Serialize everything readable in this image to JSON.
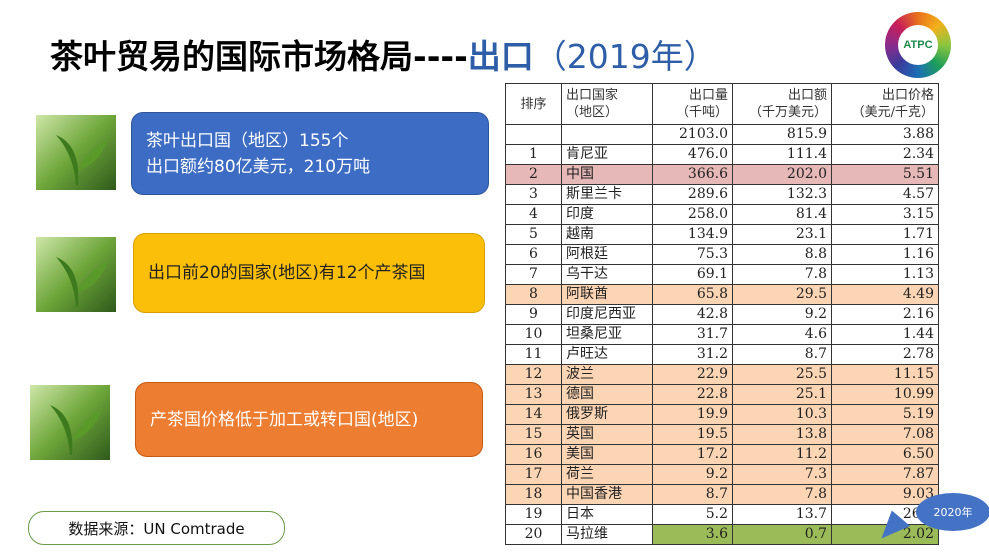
{
  "title": {
    "main": "茶叶贸易的国际市场格局----",
    "highlight": "出口",
    "year": "（2019年）"
  },
  "logo": {
    "text": "ATPC"
  },
  "boxes": [
    {
      "line1": "茶叶出口国（地区）155个",
      "line2": "出口额约80亿美元，210万吨",
      "color": "#3d6cc4"
    },
    {
      "line1": "出口前20的国家(地区)有12个产茶国",
      "color": "#fbbf09"
    },
    {
      "line1": "产茶国价格低于加工或转口国(地区)",
      "color": "#ed7d31"
    }
  ],
  "source": "数据来源：UN Comtrade",
  "callout": "2020年",
  "table": {
    "headers": [
      [
        "排序"
      ],
      [
        "出口国家",
        "（地区）"
      ],
      [
        "出口量",
        "（千吨）"
      ],
      [
        "出口额",
        "（千万美元）"
      ],
      [
        "出口价格",
        "（美元/千克）"
      ]
    ],
    "total": [
      "",
      "",
      "2103.0",
      "815.9",
      "3.88"
    ],
    "rows": [
      [
        "1",
        "肯尼亚",
        "476.0",
        "111.4",
        "2.34"
      ],
      [
        "2",
        "中国",
        "366.6",
        "202.0",
        "5.51"
      ],
      [
        "3",
        "斯里兰卡",
        "289.6",
        "132.3",
        "4.57"
      ],
      [
        "4",
        "印度",
        "258.0",
        "81.4",
        "3.15"
      ],
      [
        "5",
        "越南",
        "134.9",
        "23.1",
        "1.71"
      ],
      [
        "6",
        "阿根廷",
        "75.3",
        "8.8",
        "1.16"
      ],
      [
        "7",
        "乌干达",
        "69.1",
        "7.8",
        "1.13"
      ],
      [
        "8",
        "阿联酋",
        "65.8",
        "29.5",
        "4.49"
      ],
      [
        "9",
        "印度尼西亚",
        "42.8",
        "9.2",
        "2.16"
      ],
      [
        "10",
        "坦桑尼亚",
        "31.7",
        "4.6",
        "1.44"
      ],
      [
        "11",
        "卢旺达",
        "31.2",
        "8.7",
        "2.78"
      ],
      [
        "12",
        "波兰",
        "22.9",
        "25.5",
        "11.15"
      ],
      [
        "13",
        "德国",
        "22.8",
        "25.1",
        "10.99"
      ],
      [
        "14",
        "俄罗斯",
        "19.9",
        "10.3",
        "5.19"
      ],
      [
        "15",
        "英国",
        "19.5",
        "13.8",
        "7.08"
      ],
      [
        "16",
        "美国",
        "17.2",
        "11.2",
        "6.50"
      ],
      [
        "17",
        "荷兰",
        "9.2",
        "7.3",
        "7.87"
      ],
      [
        "18",
        "中国香港",
        "8.7",
        "7.8",
        "9.03"
      ],
      [
        "19",
        "日本",
        "5.2",
        "13.7",
        "26.4"
      ],
      [
        "20",
        "马拉维",
        "3.6",
        "0.7",
        "2.02"
      ]
    ],
    "row_styles": [
      "",
      "pink",
      "",
      "",
      "",
      "",
      "",
      "orange",
      "",
      "",
      "",
      "orange",
      "orange",
      "orange",
      "orange",
      "orange",
      "orange",
      "orange",
      "",
      "green"
    ],
    "colors": {
      "pink": "#e6b8b7",
      "orange": "#fcd5b4",
      "green": "#9bbb59"
    }
  }
}
